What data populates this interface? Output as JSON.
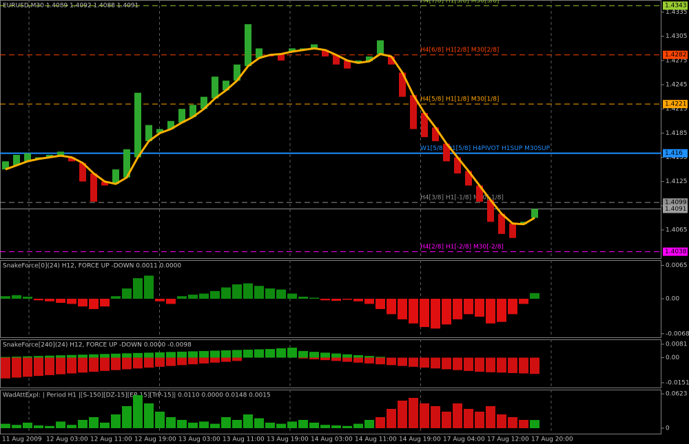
{
  "chart_data": [
    {
      "type": "bar",
      "title": "EURUSD,M30  1.4089 1.4092 1.4088 1.4091",
      "categories": [
        "11 Aug 2009",
        null,
        null,
        null,
        "12 Aug 03:00",
        null,
        null,
        null,
        "12 Aug 11:00",
        null,
        null,
        null,
        "12 Aug 19:00",
        null,
        null,
        null,
        "13 Aug 03:00",
        null,
        null,
        null,
        "13 Aug 11:00",
        null,
        null,
        null,
        "13 Aug 19:00",
        null,
        null,
        null,
        "14 Aug 03:00",
        null,
        null,
        null,
        "14 Aug 11:00",
        null,
        null,
        null,
        "14 Aug 19:00",
        null,
        null,
        null,
        "17 Aug 04:00",
        null,
        null,
        null,
        "17 Aug 12:00",
        null,
        null,
        null,
        "17 Aug 20:00"
      ],
      "values": [
        1.415,
        1.4158,
        1.416,
        1.4155,
        1.4158,
        1.4162,
        1.415,
        1.4125,
        1.41,
        1.412,
        1.414,
        1.4165,
        1.4235,
        1.4195,
        1.419,
        1.42,
        1.4215,
        1.422,
        1.423,
        1.4255,
        1.425,
        1.427,
        1.432,
        1.429,
        1.428,
        1.4275,
        1.429,
        1.429,
        1.4295,
        1.428,
        1.427,
        1.4265,
        1.4275,
        1.428,
        1.43,
        1.427,
        1.423,
        1.419,
        1.418,
        1.4175,
        1.415,
        1.4135,
        1.412,
        1.41,
        1.4075,
        1.406,
        1.4055,
        1.4075,
        1.4091
      ],
      "ma": [
        1.414,
        1.4145,
        1.415,
        1.4153,
        1.4155,
        1.4157,
        1.4155,
        1.4148,
        1.4135,
        1.4125,
        1.4122,
        1.413,
        1.4155,
        1.4175,
        1.4185,
        1.419,
        1.4198,
        1.4205,
        1.4215,
        1.4228,
        1.4238,
        1.425,
        1.4268,
        1.4278,
        1.4282,
        1.4283,
        1.4286,
        1.4288,
        1.429,
        1.4288,
        1.4282,
        1.4275,
        1.4272,
        1.4274,
        1.4283,
        1.428,
        1.426,
        1.4232,
        1.421,
        1.4192,
        1.4172,
        1.4155,
        1.4138,
        1.412,
        1.4102,
        1.4085,
        1.4073,
        1.4072,
        1.408
      ],
      "ylim": [
        1.403,
        1.435
      ],
      "yticks": [
        1.4335,
        1.4305,
        1.4275,
        1.4245,
        1.4215,
        1.4185,
        1.4155,
        1.4125,
        1.4095,
        1.4065
      ],
      "levels": [
        {
          "value": 1.4343,
          "label": "H4[7/8] H1[3/8] M30[3/8]",
          "color": "#9acd32"
        },
        {
          "value": 1.4282,
          "label": "H4[6/8] H1[2/8] M30[2/8]",
          "color": "#ff4500"
        },
        {
          "value": 1.4221,
          "label": "H4[5/8] H1[1/8] M30[1/8]",
          "color": "#ffa500"
        },
        {
          "value": 1.416,
          "label": "W1[5/8] D1[5/8] H4PIVOT H1SUP M30SUP",
          "color": "#1e90ff"
        },
        {
          "value": 1.4099,
          "label": "H4[3/8] H1[-1/8] M30[-1/8]",
          "color": "#909090"
        },
        {
          "value": 1.4038,
          "label": "H4[2/8] H1[-2/8] M30[-2/8]",
          "color": "#ff00ff"
        }
      ],
      "last_price": 1.4091
    },
    {
      "type": "histogram",
      "title": "SnakeForce[0](24) H12, FORCE UP -DOWN 0.0011 0.0000",
      "values": [
        0.0005,
        0.0007,
        0.0004,
        -0.0003,
        -0.0005,
        -0.0008,
        -0.001,
        -0.0015,
        -0.002,
        -0.0015,
        0.0005,
        0.002,
        0.004,
        0.0045,
        -0.0005,
        -0.001,
        0.0005,
        0.0008,
        0.001,
        0.0015,
        0.0022,
        0.0028,
        0.003,
        0.0025,
        0.002,
        0.0018,
        0.001,
        0.0004,
        0.0002,
        -0.0003,
        -0.0004,
        -0.0002,
        -0.0005,
        -0.001,
        -0.002,
        -0.003,
        -0.004,
        -0.0048,
        -0.0055,
        -0.0058,
        -0.005,
        -0.004,
        -0.003,
        -0.0035,
        -0.0048,
        -0.0045,
        -0.003,
        -0.001,
        0.0011
      ],
      "ylim": [
        -0.0075,
        0.0075
      ],
      "yticks": [
        0.0065,
        {
          "value": 0,
          "label": "0.00"
        },
        -0.0068
      ]
    },
    {
      "type": "histogram2",
      "title": "SnakeForce[240](24) H12, FORCE UP -DOWN 0.0000 -0.0098",
      "up": [
        0.0004,
        0.0006,
        0.0008,
        0.001,
        0.0012,
        0.0014,
        0.0016,
        0.0018,
        0.002,
        0.0022,
        0.0024,
        0.0026,
        0.0028,
        0.003,
        0.0032,
        0.0034,
        0.0036,
        0.0038,
        0.004,
        0.0042,
        0.0044,
        0.0046,
        0.0048,
        0.005,
        0.0052,
        0.0056,
        0.006,
        0.004,
        0.0035,
        0.003,
        0.0025,
        0.002,
        0.0015,
        0.001,
        0.0005,
        0,
        0,
        0,
        0,
        0,
        0,
        0,
        0,
        0,
        0,
        0,
        0,
        0,
        0
      ],
      "down": [
        -0.0125,
        -0.012,
        -0.0115,
        -0.011,
        -0.0105,
        -0.01,
        -0.0095,
        -0.009,
        -0.0085,
        -0.008,
        -0.0075,
        -0.007,
        -0.0065,
        -0.006,
        -0.0055,
        -0.005,
        -0.0045,
        -0.004,
        -0.0035,
        -0.003,
        -0.0025,
        -0.002,
        0,
        0,
        0,
        0,
        0,
        -0.0005,
        -0.001,
        -0.0015,
        -0.002,
        -0.0025,
        -0.003,
        -0.0035,
        -0.004,
        -0.0045,
        -0.005,
        -0.0055,
        -0.006,
        -0.0065,
        -0.007,
        -0.0075,
        -0.008,
        -0.0085,
        -0.0088,
        -0.009,
        -0.0093,
        -0.0095,
        -0.0098
      ],
      "ylim": [
        -0.018,
        0.011
      ],
      "yticks": [
        0.0081,
        {
          "value": 0,
          "label": "0.00"
        },
        -0.0151
      ]
    },
    {
      "type": "histogram2",
      "title": "WadAttExpl: | Period H1 |[S-150][DZ-15][EP-15][TrP-15]| 0.0110 0.0000 0.0148 0.0015",
      "up": [
        0.008,
        0.006,
        0.01,
        0.005,
        0.004,
        0.012,
        0.006,
        0.015,
        0.02,
        0.01,
        0.025,
        0.04,
        0.06,
        0.045,
        0.03,
        0.02,
        0.015,
        0.01,
        0.012,
        0.008,
        0.02,
        0.015,
        0.025,
        0.018,
        0.01,
        0.008,
        0.012,
        0.015,
        0.01,
        0.006,
        0.005,
        0.004,
        0.008,
        0.015,
        null,
        null,
        null,
        null,
        null,
        null,
        null,
        null,
        null,
        null,
        null,
        null,
        null,
        null,
        0.0148
      ],
      "down": [
        null,
        null,
        null,
        null,
        null,
        null,
        null,
        null,
        null,
        null,
        null,
        null,
        null,
        null,
        null,
        null,
        null,
        null,
        null,
        null,
        null,
        null,
        null,
        null,
        null,
        null,
        null,
        null,
        null,
        null,
        null,
        null,
        null,
        null,
        0.02,
        0.035,
        0.05,
        0.055,
        0.045,
        0.04,
        0.03,
        0.045,
        0.035,
        0.03,
        0.04,
        0.025,
        0.02,
        0.015,
        null
      ],
      "ylim": [
        -0.01,
        0.07
      ],
      "yticks": [
        0.0623,
        0
      ]
    }
  ]
}
